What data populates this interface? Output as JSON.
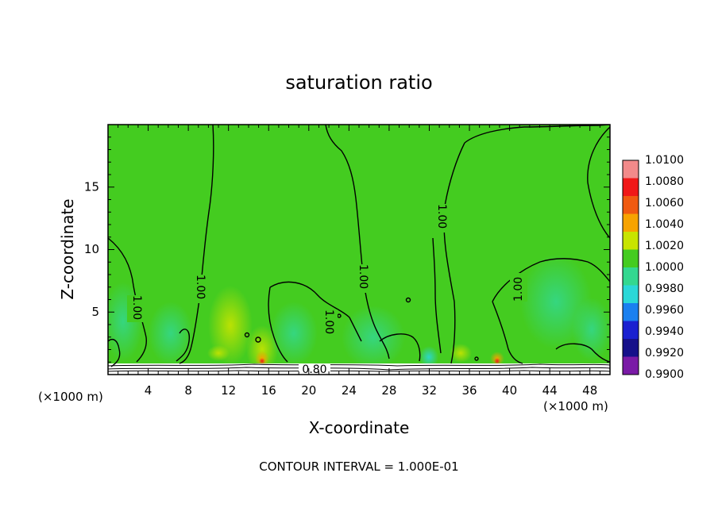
{
  "chart_data": {
    "type": "heatmap",
    "title": "saturation ratio",
    "xlabel": "X-coordinate",
    "ylabel": "Z-coordinate",
    "x_unit_left": "(×1000 m)",
    "x_unit_right": "(×1000 m)",
    "xlim": [
      0,
      50
    ],
    "ylim": [
      0,
      20
    ],
    "x_ticks": [
      "4",
      "8",
      "12",
      "16",
      "20",
      "24",
      "28",
      "32",
      "36",
      "40",
      "44",
      "48"
    ],
    "x_tick_values": [
      4,
      8,
      12,
      16,
      20,
      24,
      28,
      32,
      36,
      40,
      44,
      48
    ],
    "y_ticks": [
      "5",
      "10",
      "15"
    ],
    "y_tick_values": [
      5,
      10,
      15
    ],
    "footer": "CONTOUR INTERVAL = 1.000E-01",
    "colorbar": {
      "labels": [
        "1.0100",
        "1.0080",
        "1.0060",
        "1.0040",
        "1.0020",
        "1.0000",
        "0.9980",
        "0.9960",
        "0.9940",
        "0.9920",
        "0.9900"
      ],
      "colors": [
        "#f28a8a",
        "#f01818",
        "#f05a10",
        "#f7a300",
        "#c8e400",
        "#44cc20",
        "#33d890",
        "#2ad8d8",
        "#1a80f0",
        "#1a20d0",
        "#16108a",
        "#7a1aa6"
      ]
    },
    "contour_labels": [
      {
        "text": "1.00",
        "x": 2.8,
        "z": 5.5
      },
      {
        "text": "1.00",
        "x": 9.2,
        "z": 7.2
      },
      {
        "text": "1.00",
        "x": 21.6,
        "z": 4.3
      },
      {
        "text": "1.00",
        "x": 25.8,
        "z": 8.3
      },
      {
        "text": "1.00",
        "x": 33.5,
        "z": 12.5
      },
      {
        "text": "1.00",
        "x": 41.0,
        "z": 7.0
      },
      {
        "text": "0.80",
        "x": 21.5,
        "z": 0.5
      }
    ],
    "background_value": 1.0,
    "grid": false
  }
}
